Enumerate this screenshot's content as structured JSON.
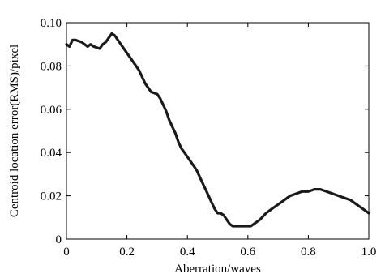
{
  "chart_data": {
    "type": "line",
    "title": "",
    "xlabel": "Aberration/waves",
    "ylabel": "Centroid location error(RMS)/pixel",
    "xlim": [
      0,
      1.0
    ],
    "ylim": [
      0,
      0.1
    ],
    "xticks": [
      0,
      0.2,
      0.4,
      0.6,
      0.8,
      1.0
    ],
    "xtick_labels": [
      "0",
      "0.2",
      "0.4",
      "0.6",
      "0.8",
      "1.0"
    ],
    "yticks": [
      0,
      0.02,
      0.04,
      0.06,
      0.08,
      0.1
    ],
    "ytick_labels": [
      "0",
      "0.02",
      "0.04",
      "0.06",
      "0.08",
      "0.10"
    ],
    "grid": false,
    "legend": "none",
    "line_color": "#1a1a1a",
    "series": [
      {
        "x": [
          0,
          0.01,
          0.02,
          0.03,
          0.05,
          0.07,
          0.08,
          0.09,
          0.11,
          0.12,
          0.13,
          0.14,
          0.15,
          0.16,
          0.17,
          0.18,
          0.2,
          0.22,
          0.24,
          0.25,
          0.26,
          0.27,
          0.28,
          0.3,
          0.31,
          0.32,
          0.33,
          0.34,
          0.35,
          0.36,
          0.37,
          0.38,
          0.39,
          0.4,
          0.41,
          0.42,
          0.43,
          0.44,
          0.45,
          0.46,
          0.47,
          0.48,
          0.49,
          0.5,
          0.51,
          0.52,
          0.53,
          0.54,
          0.55,
          0.56,
          0.57,
          0.58,
          0.59,
          0.6,
          0.61,
          0.62,
          0.64,
          0.66,
          0.68,
          0.7,
          0.72,
          0.74,
          0.76,
          0.78,
          0.8,
          0.82,
          0.84,
          0.86,
          0.88,
          0.9,
          0.92,
          0.94,
          0.96,
          0.98,
          1.0
        ],
        "y": [
          0.09,
          0.089,
          0.092,
          0.092,
          0.091,
          0.089,
          0.09,
          0.089,
          0.088,
          0.09,
          0.091,
          0.093,
          0.095,
          0.094,
          0.092,
          0.09,
          0.086,
          0.082,
          0.078,
          0.075,
          0.072,
          0.07,
          0.068,
          0.067,
          0.065,
          0.062,
          0.059,
          0.055,
          0.052,
          0.049,
          0.045,
          0.042,
          0.04,
          0.038,
          0.036,
          0.034,
          0.032,
          0.029,
          0.026,
          0.023,
          0.02,
          0.017,
          0.014,
          0.012,
          0.012,
          0.011,
          0.009,
          0.007,
          0.006,
          0.006,
          0.006,
          0.006,
          0.006,
          0.006,
          0.006,
          0.007,
          0.009,
          0.012,
          0.014,
          0.016,
          0.018,
          0.02,
          0.021,
          0.022,
          0.022,
          0.023,
          0.023,
          0.022,
          0.021,
          0.02,
          0.019,
          0.018,
          0.016,
          0.014,
          0.012
        ]
      }
    ]
  }
}
